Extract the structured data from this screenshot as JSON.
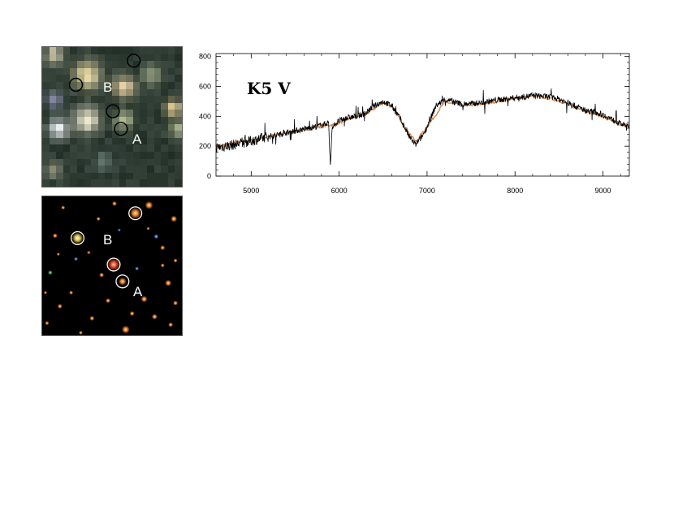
{
  "panels": {
    "top_label_b": "B",
    "top_label_a": "A",
    "bottom_label_b": "B",
    "bottom_label_a": "A"
  },
  "chart_data": {
    "type": "line",
    "annotation": "K5 V",
    "title": "",
    "xlabel": "",
    "ylabel": "",
    "xlim": [
      4600,
      9300
    ],
    "ylim": [
      0,
      820
    ],
    "xticks": [
      5000,
      6000,
      7000,
      8000,
      9000
    ],
    "yticks": [
      0,
      200,
      400,
      600,
      800
    ],
    "grid": false,
    "colors": {
      "observed": "#000000",
      "template": "#d2874a"
    },
    "series": [
      {
        "x": [
          4600,
          4800,
          5000,
          5200,
          5400,
          5600,
          5800,
          5880,
          5900,
          5920,
          6000,
          6100,
          6200,
          6300,
          6400,
          6500,
          6600,
          6700,
          6800,
          6870,
          6950,
          7000,
          7100,
          7200,
          7300,
          7400,
          7500,
          7600,
          7700,
          7800,
          7900,
          8000,
          8100,
          8200,
          8300,
          8400,
          8500,
          8600,
          8700,
          8800,
          8900,
          9000,
          9100,
          9200,
          9300
        ],
        "values": [
          190,
          210,
          235,
          265,
          290,
          315,
          340,
          360,
          60,
          330,
          370,
          390,
          400,
          420,
          470,
          500,
          470,
          380,
          260,
          210,
          270,
          330,
          470,
          510,
          500,
          480,
          485,
          490,
          500,
          510,
          515,
          525,
          530,
          540,
          535,
          530,
          515,
          490,
          465,
          440,
          430,
          410,
          380,
          350,
          330
        ]
      },
      {
        "x": [
          4600,
          5000,
          5400,
          5800,
          5950,
          6100,
          6300,
          6500,
          6600,
          6750,
          6870,
          7000,
          7200,
          7400,
          7600,
          7800,
          8000,
          8200,
          8300,
          8500,
          8700,
          8900,
          9100,
          9300
        ],
        "values": [
          200,
          240,
          290,
          335,
          345,
          380,
          415,
          490,
          465,
          330,
          230,
          330,
          495,
          475,
          480,
          500,
          520,
          535,
          530,
          505,
          455,
          420,
          375,
          325
        ]
      }
    ]
  }
}
